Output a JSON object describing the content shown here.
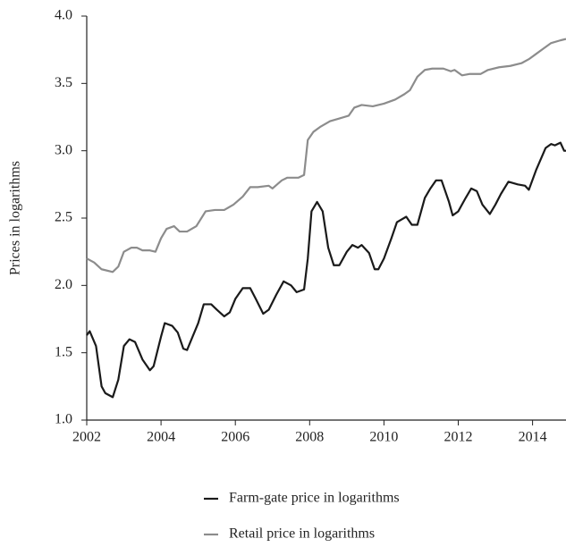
{
  "chart_data": {
    "type": "line",
    "y_label": "Prices in logarithms",
    "xlim": [
      2002,
      2014.9
    ],
    "xticks": [
      2002,
      2004,
      2006,
      2008,
      2010,
      2012,
      2014
    ],
    "ylim": [
      1.0,
      4.0
    ],
    "yticks": [
      {
        "value": 1.0,
        "label": "1.0"
      },
      1.5,
      {
        "value": 2.0,
        "label": "2.0"
      },
      2.5,
      {
        "value": 3.0,
        "label": "3.0"
      },
      3.5,
      {
        "value": 4.0,
        "label": "4.0"
      }
    ],
    "series": [
      {
        "name": "Farm-gate price in logarithms",
        "color": "#1a1a1a",
        "x": [
          2002.0,
          2002.08,
          2002.25,
          2002.4,
          2002.5,
          2002.7,
          2002.85,
          2003.0,
          2003.15,
          2003.3,
          2003.5,
          2003.7,
          2003.8,
          2004.0,
          2004.1,
          2004.3,
          2004.45,
          2004.6,
          2004.7,
          2005.0,
          2005.15,
          2005.35,
          2005.5,
          2005.7,
          2005.85,
          2006.0,
          2006.2,
          2006.4,
          2006.55,
          2006.75,
          2006.9,
          2007.1,
          2007.3,
          2007.5,
          2007.65,
          2007.85,
          2007.95,
          2008.05,
          2008.2,
          2008.35,
          2008.5,
          2008.65,
          2008.8,
          2009.0,
          2009.15,
          2009.3,
          2009.4,
          2009.6,
          2009.75,
          2009.85,
          2010.0,
          2010.2,
          2010.35,
          2010.6,
          2010.75,
          2010.9,
          2011.1,
          2011.25,
          2011.4,
          2011.55,
          2011.75,
          2011.85,
          2012.0,
          2012.2,
          2012.35,
          2012.5,
          2012.65,
          2012.85,
          2013.0,
          2013.15,
          2013.35,
          2013.6,
          2013.8,
          2013.9,
          2014.1,
          2014.35,
          2014.5,
          2014.6,
          2014.75,
          2014.85,
          2014.9
        ],
        "values": [
          1.63,
          1.66,
          1.55,
          1.25,
          1.2,
          1.17,
          1.3,
          1.55,
          1.6,
          1.58,
          1.45,
          1.37,
          1.4,
          1.62,
          1.72,
          1.7,
          1.65,
          1.53,
          1.52,
          1.72,
          1.86,
          1.86,
          1.82,
          1.77,
          1.8,
          1.9,
          1.98,
          1.98,
          1.9,
          1.79,
          1.82,
          1.93,
          2.03,
          2.0,
          1.95,
          1.97,
          2.2,
          2.55,
          2.62,
          2.55,
          2.28,
          2.15,
          2.15,
          2.25,
          2.3,
          2.28,
          2.3,
          2.24,
          2.12,
          2.12,
          2.2,
          2.35,
          2.47,
          2.51,
          2.45,
          2.45,
          2.65,
          2.72,
          2.78,
          2.78,
          2.62,
          2.52,
          2.55,
          2.65,
          2.72,
          2.7,
          2.6,
          2.53,
          2.6,
          2.68,
          2.77,
          2.75,
          2.74,
          2.71,
          2.86,
          3.02,
          3.05,
          3.04,
          3.06,
          3.0,
          3.0
        ]
      },
      {
        "name": "Retail price in logarithms",
        "color": "#8c8c8c",
        "x": [
          2002.0,
          2002.2,
          2002.4,
          2002.7,
          2002.85,
          2003.0,
          2003.2,
          2003.35,
          2003.5,
          2003.7,
          2003.85,
          2004.0,
          2004.15,
          2004.35,
          2004.5,
          2004.7,
          2004.95,
          2005.2,
          2005.45,
          2005.7,
          2005.95,
          2006.2,
          2006.4,
          2006.6,
          2006.9,
          2007.0,
          2007.25,
          2007.4,
          2007.7,
          2007.85,
          2007.95,
          2008.1,
          2008.3,
          2008.55,
          2008.8,
          2009.05,
          2009.2,
          2009.4,
          2009.7,
          2010.0,
          2010.3,
          2010.55,
          2010.7,
          2010.9,
          2011.1,
          2011.3,
          2011.6,
          2011.8,
          2011.9,
          2012.1,
          2012.3,
          2012.6,
          2012.8,
          2013.1,
          2013.4,
          2013.7,
          2013.9,
          2014.1,
          2014.3,
          2014.5,
          2014.75,
          2014.9
        ],
        "values": [
          2.2,
          2.17,
          2.12,
          2.1,
          2.14,
          2.25,
          2.28,
          2.28,
          2.26,
          2.26,
          2.25,
          2.35,
          2.42,
          2.44,
          2.4,
          2.4,
          2.44,
          2.55,
          2.56,
          2.56,
          2.6,
          2.66,
          2.73,
          2.73,
          2.74,
          2.72,
          2.78,
          2.8,
          2.8,
          2.82,
          3.08,
          3.14,
          3.18,
          3.22,
          3.24,
          3.26,
          3.32,
          3.34,
          3.33,
          3.35,
          3.38,
          3.42,
          3.45,
          3.55,
          3.6,
          3.61,
          3.61,
          3.59,
          3.6,
          3.56,
          3.57,
          3.57,
          3.6,
          3.62,
          3.63,
          3.65,
          3.68,
          3.72,
          3.76,
          3.8,
          3.82,
          3.83
        ]
      }
    ]
  }
}
